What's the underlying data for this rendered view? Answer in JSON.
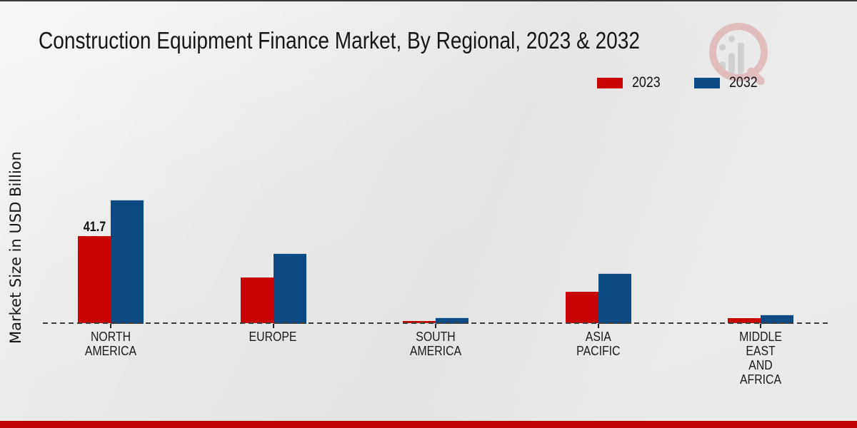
{
  "chart_data": {
    "type": "bar",
    "title": "Construction Equipment Finance Market, By Regional, 2023 & 2032",
    "ylabel": "Market Size in USD Billion",
    "categories": [
      "NORTH AMERICA",
      "EUROPE",
      "SOUTH AMERICA",
      "ASIA PACIFIC",
      "MIDDLE EAST AND AFRICA"
    ],
    "series": [
      {
        "name": "2023",
        "color": "#c90404",
        "values": [
          41.7,
          21.9,
          1.0,
          15.0,
          2.3
        ]
      },
      {
        "name": "2032",
        "color": "#0d4a83",
        "values": [
          59.1,
          33.4,
          2.7,
          23.9,
          4.1
        ]
      }
    ],
    "data_labels": [
      {
        "series_index": 0,
        "category_index": 0,
        "text": "41.7"
      }
    ],
    "axis": {
      "baseline_style": "dashed",
      "gridlines": false,
      "y_ticks_visible": false
    },
    "legend_position": "top-right"
  },
  "watermark": {
    "icon": "magnifier-bar-chart-logo",
    "accent_color": "#d89a9a",
    "bar_color": "#bdbdbd"
  },
  "footer": {
    "band_color": "#bf0404"
  },
  "background_color": "#e9e9e9"
}
